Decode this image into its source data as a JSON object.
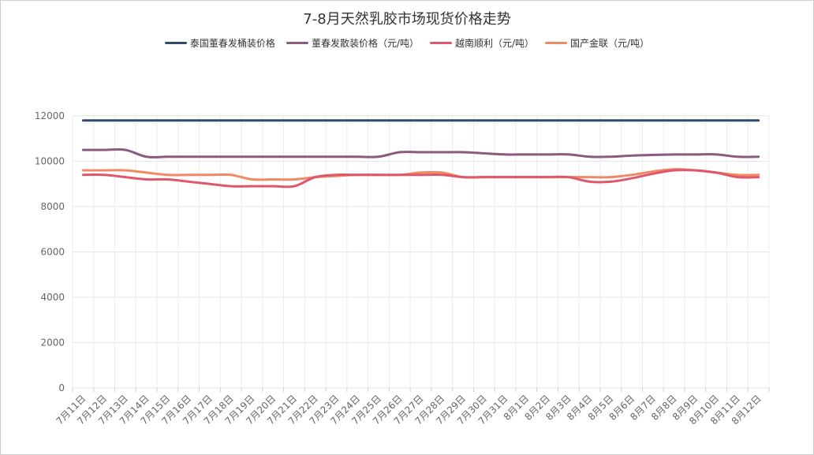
{
  "chart_data": {
    "type": "line",
    "title": "7-8月天然乳胶市场现货价格走势",
    "ylim": [
      0,
      12000
    ],
    "yticks": [
      0,
      2000,
      4000,
      6000,
      8000,
      10000,
      12000
    ],
    "grid": true,
    "legend_position": "top",
    "categories": [
      "7月11日",
      "7月12日",
      "7月13日",
      "7月14日",
      "7月15日",
      "7月16日",
      "7月17日",
      "7月18日",
      "7月19日",
      "7月20日",
      "7月21日",
      "7月22日",
      "7月23日",
      "7月24日",
      "7月25日",
      "7月26日",
      "7月27日",
      "7月28日",
      "7月29日",
      "7月30日",
      "7月31日",
      "8月1日",
      "8月2日",
      "8月3日",
      "8月4日",
      "8月5日",
      "8月6日",
      "8月7日",
      "8月8日",
      "8月9日",
      "8月10日",
      "8月11日",
      "8月12日"
    ],
    "series": [
      {
        "name": "泰国董春发桶装价格",
        "color": "#2f4b6e",
        "values": [
          11800,
          11800,
          11800,
          11800,
          11800,
          11800,
          11800,
          11800,
          11800,
          11800,
          11800,
          11800,
          11800,
          11800,
          11800,
          11800,
          11800,
          11800,
          11800,
          11800,
          11800,
          11800,
          11800,
          11800,
          11800,
          11800,
          11800,
          11800,
          11800,
          11800,
          11800,
          11800,
          11800
        ]
      },
      {
        "name": "董春发散装价格（元/吨）",
        "color": "#8b5b7d",
        "values": [
          10500,
          10500,
          10500,
          10200,
          10200,
          10200,
          10200,
          10200,
          10200,
          10200,
          10200,
          10200,
          10200,
          10200,
          10200,
          10400,
          10400,
          10400,
          10400,
          10350,
          10300,
          10300,
          10300,
          10300,
          10200,
          10200,
          10250,
          10280,
          10300,
          10300,
          10300,
          10200,
          10200
        ]
      },
      {
        "name": "越南顺利（元/吨）",
        "color": "#e0566b",
        "values": [
          9400,
          9400,
          9300,
          9200,
          9200,
          9100,
          9000,
          8900,
          8900,
          8900,
          8900,
          9300,
          9400,
          9400,
          9400,
          9400,
          9400,
          9400,
          9300,
          9300,
          9300,
          9300,
          9300,
          9300,
          9100,
          9100,
          9250,
          9450,
          9600,
          9600,
          9500,
          9300,
          9300
        ]
      },
      {
        "name": "国产金联（元/吨）",
        "color": "#f08a66",
        "values": [
          9600,
          9600,
          9600,
          9500,
          9400,
          9400,
          9400,
          9400,
          9200,
          9200,
          9200,
          9300,
          9350,
          9400,
          9400,
          9400,
          9500,
          9500,
          9300,
          9300,
          9300,
          9300,
          9300,
          9300,
          9300,
          9300,
          9400,
          9550,
          9650,
          9600,
          9500,
          9400,
          9400
        ]
      }
    ]
  }
}
